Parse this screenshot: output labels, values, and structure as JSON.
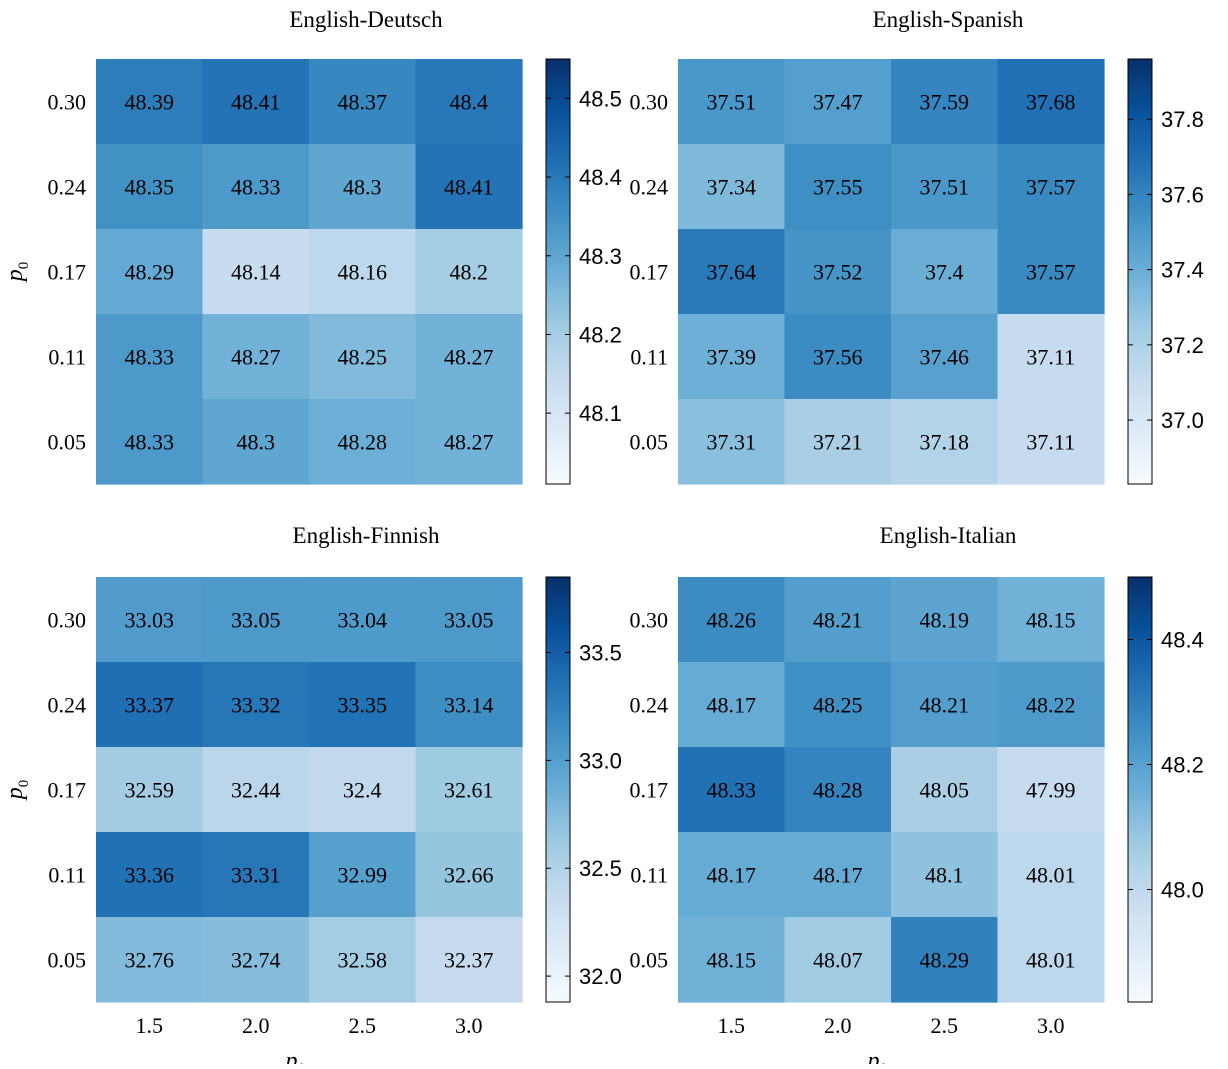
{
  "chart_data": [
    {
      "type": "heatmap",
      "title": "English-Deutsch",
      "x": [
        "1.5",
        "2.0",
        "2.5",
        "3.0"
      ],
      "y": [
        "0.30",
        "0.24",
        "0.17",
        "0.11",
        "0.05"
      ],
      "ylabel_base": "p",
      "ylabel_sub": "0",
      "values": [
        [
          48.39,
          48.41,
          48.37,
          48.4
        ],
        [
          48.35,
          48.33,
          48.3,
          48.41
        ],
        [
          48.29,
          48.14,
          48.16,
          48.2
        ],
        [
          48.33,
          48.27,
          48.25,
          48.27
        ],
        [
          48.33,
          48.3,
          48.28,
          48.27
        ]
      ],
      "cells": [
        [
          "48.39",
          "48.41",
          "48.37",
          "48.4"
        ],
        [
          "48.35",
          "48.33",
          "48.3",
          "48.41"
        ],
        [
          "48.29",
          "48.14",
          "48.16",
          "48.2"
        ],
        [
          "48.33",
          "48.27",
          "48.25",
          "48.27"
        ],
        [
          "48.33",
          "48.3",
          "48.28",
          "48.27"
        ]
      ],
      "colorbar": {
        "range": [
          48.01,
          48.55
        ],
        "ticks": [
          48.1,
          48.2,
          48.3,
          48.4,
          48.5
        ],
        "tick_labels": [
          "48.1",
          "48.2",
          "48.3",
          "48.4",
          "48.5"
        ]
      }
    },
    {
      "type": "heatmap",
      "title": "English-Spanish",
      "x": [
        "1.5",
        "2.0",
        "2.5",
        "3.0"
      ],
      "y": [
        "0.30",
        "0.24",
        "0.17",
        "0.11",
        "0.05"
      ],
      "values": [
        [
          37.51,
          37.47,
          37.59,
          37.68
        ],
        [
          37.34,
          37.55,
          37.51,
          37.57
        ],
        [
          37.64,
          37.52,
          37.4,
          37.57
        ],
        [
          37.39,
          37.56,
          37.46,
          37.11
        ],
        [
          37.31,
          37.21,
          37.18,
          37.11
        ]
      ],
      "cells": [
        [
          "37.51",
          "37.47",
          "37.59",
          "37.68"
        ],
        [
          "37.34",
          "37.55",
          "37.51",
          "37.57"
        ],
        [
          "37.64",
          "37.52",
          "37.4",
          "37.57"
        ],
        [
          "37.39",
          "37.56",
          "37.46",
          "37.11"
        ],
        [
          "37.31",
          "37.21",
          "37.18",
          "37.11"
        ]
      ],
      "colorbar": {
        "range": [
          36.83,
          37.96
        ],
        "ticks": [
          37.0,
          37.2,
          37.4,
          37.6,
          37.8
        ],
        "tick_labels": [
          "37.0",
          "37.2",
          "37.4",
          "37.6",
          "37.8"
        ]
      }
    },
    {
      "type": "heatmap",
      "title": "English-Finnish",
      "x": [
        "1.5",
        "2.0",
        "2.5",
        "3.0"
      ],
      "y": [
        "0.30",
        "0.24",
        "0.17",
        "0.11",
        "0.05"
      ],
      "ylabel_base": "p",
      "ylabel_sub": "0",
      "xlabel_base": "p",
      "xlabel_sub": "factor",
      "values": [
        [
          33.03,
          33.05,
          33.04,
          33.05
        ],
        [
          33.37,
          33.32,
          33.35,
          33.14
        ],
        [
          32.59,
          32.44,
          32.4,
          32.61
        ],
        [
          33.36,
          33.31,
          32.99,
          32.66
        ],
        [
          32.76,
          32.74,
          32.58,
          32.37
        ]
      ],
      "cells": [
        [
          "33.03",
          "33.05",
          "33.04",
          "33.05"
        ],
        [
          "33.37",
          "33.32",
          "33.35",
          "33.14"
        ],
        [
          "32.59",
          "32.44",
          "32.4",
          "32.61"
        ],
        [
          "33.36",
          "33.31",
          "32.99",
          "32.66"
        ],
        [
          "32.76",
          "32.74",
          "32.58",
          "32.37"
        ]
      ],
      "colorbar": {
        "range": [
          31.88,
          33.85
        ],
        "ticks": [
          32.0,
          32.5,
          33.0,
          33.5
        ],
        "tick_labels": [
          "32.0",
          "32.5",
          "33.0",
          "33.5"
        ]
      }
    },
    {
      "type": "heatmap",
      "title": "English-Italian",
      "x": [
        "1.5",
        "2.0",
        "2.5",
        "3.0"
      ],
      "y": [
        "0.30",
        "0.24",
        "0.17",
        "0.11",
        "0.05"
      ],
      "xlabel_base": "p",
      "xlabel_sub": "factor",
      "values": [
        [
          48.26,
          48.21,
          48.19,
          48.15
        ],
        [
          48.17,
          48.25,
          48.21,
          48.22
        ],
        [
          48.33,
          48.28,
          48.05,
          47.99
        ],
        [
          48.17,
          48.17,
          48.1,
          48.01
        ],
        [
          48.15,
          48.07,
          48.29,
          48.01
        ]
      ],
      "cells": [
        [
          "48.26",
          "48.21",
          "48.19",
          "48.15"
        ],
        [
          "48.17",
          "48.25",
          "48.21",
          "48.22"
        ],
        [
          "48.33",
          "48.28",
          "48.05",
          "47.99"
        ],
        [
          "48.17",
          "48.17",
          "48.1",
          "48.01"
        ],
        [
          "48.15",
          "48.07",
          "48.29",
          "48.01"
        ]
      ],
      "colorbar": {
        "range": [
          47.82,
          48.5
        ],
        "ticks": [
          48.0,
          48.2,
          48.4
        ],
        "tick_labels": [
          "48.0",
          "48.2",
          "48.4"
        ]
      }
    }
  ]
}
